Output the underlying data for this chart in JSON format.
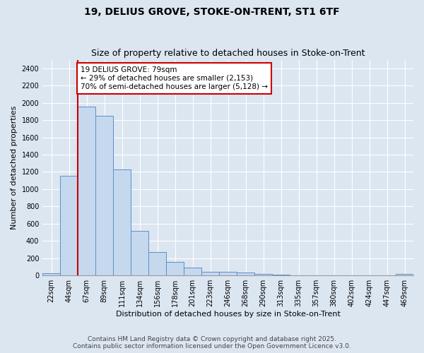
{
  "title_line1": "19, DELIUS GROVE, STOKE-ON-TRENT, ST1 6TF",
  "title_line2": "Size of property relative to detached houses in Stoke-on-Trent",
  "xlabel": "Distribution of detached houses by size in Stoke-on-Trent",
  "ylabel": "Number of detached properties",
  "bin_labels": [
    "22sqm",
    "44sqm",
    "67sqm",
    "89sqm",
    "111sqm",
    "134sqm",
    "156sqm",
    "178sqm",
    "201sqm",
    "223sqm",
    "246sqm",
    "268sqm",
    "290sqm",
    "313sqm",
    "335sqm",
    "357sqm",
    "380sqm",
    "402sqm",
    "424sqm",
    "447sqm",
    "469sqm"
  ],
  "bar_heights": [
    30,
    1155,
    1960,
    1850,
    1230,
    520,
    275,
    155,
    90,
    45,
    40,
    35,
    20,
    10,
    5,
    4,
    3,
    2,
    2,
    1,
    15
  ],
  "bar_color": "#c5d8ee",
  "bar_edge_color": "#5b8fc9",
  "background_color": "#dce6f1",
  "grid_color": "#ffffff",
  "vline_color": "#cc0000",
  "vline_x_index": 2,
  "annotation_text": "19 DELIUS GROVE: 79sqm\n← 29% of detached houses are smaller (2,153)\n70% of semi-detached houses are larger (5,128) →",
  "annotation_box_color": "#ffffff",
  "annotation_box_edge": "#cc0000",
  "ylim": [
    0,
    2500
  ],
  "yticks": [
    0,
    200,
    400,
    600,
    800,
    1000,
    1200,
    1400,
    1600,
    1800,
    2000,
    2200,
    2400
  ],
  "footer_line1": "Contains HM Land Registry data © Crown copyright and database right 2025.",
  "footer_line2": "Contains public sector information licensed under the Open Government Licence v3.0.",
  "title_fontsize": 10,
  "subtitle_fontsize": 9,
  "axis_label_fontsize": 8,
  "tick_fontsize": 7,
  "annotation_fontsize": 7.5,
  "footer_fontsize": 6.5
}
